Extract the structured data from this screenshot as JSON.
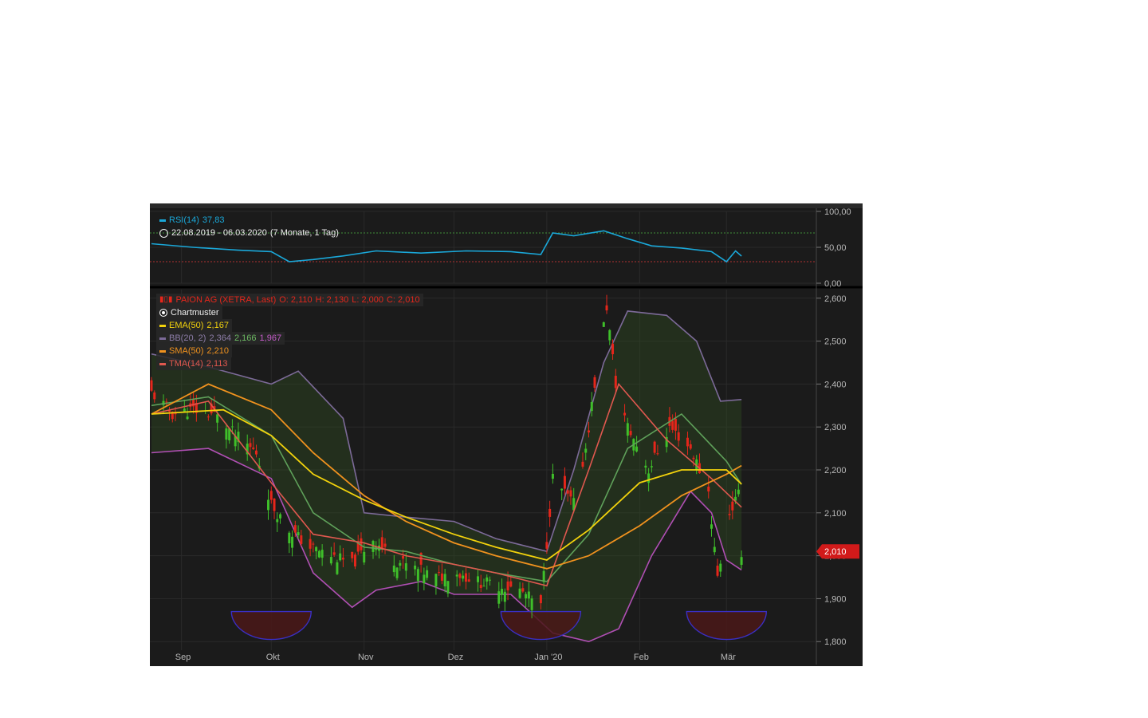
{
  "rsi_panel": {
    "label": "RSI(14)",
    "value": "37,83",
    "period": "22.08.2019 - 06.03.2020",
    "period_note": "(7 Monate, 1 Tag)",
    "ticks": [
      "100,00",
      "50,00",
      "0,00"
    ]
  },
  "price_panel": {
    "title": "PAION AG (XETRA, Last)",
    "ohlc": {
      "o": "O: 2,110",
      "h": "H: 2,130",
      "l": "L: 2,000",
      "c": "C: 2,010"
    },
    "chartmuster": "Chartmuster",
    "ema": {
      "label": "EMA(50)",
      "value": "2,167"
    },
    "bb": {
      "label": "BB(20, 2)",
      "upper": "2,364",
      "mid": "2,166",
      "lower": "1,967"
    },
    "sma": {
      "label": "SMA(50)",
      "value": "2,210"
    },
    "tma": {
      "label": "TMA(14)",
      "value": "2,113"
    },
    "last_price": "2,010",
    "y_ticks": [
      "2,600",
      "2,500",
      "2,400",
      "2,300",
      "2,200",
      "2,100",
      "2,000",
      "1,900",
      "1,800"
    ],
    "x_ticks": [
      "Sep",
      "Okt",
      "Nov",
      "Dez",
      "Jan '20",
      "Feb",
      "Mär"
    ]
  },
  "colors": {
    "background": "#1b1b1b",
    "rsi": "#1aa7d8",
    "ema": "#f2d20c",
    "sma": "#f0921e",
    "tma": "#e0584f",
    "bb_band": "#7c6a98",
    "bb_mid": "#5fa15a",
    "bb_lower": "#b04fb4",
    "up": "#3fbf2a",
    "down": "#e5261b",
    "last_price_tag": "#d11a1a"
  },
  "chart_data": {
    "type": "line",
    "title": "PAION AG (XETRA, Last)",
    "x_range": [
      "2019-08-22",
      "2020-03-06"
    ],
    "x_tick_dates": [
      "2019-09-01",
      "2019-10-01",
      "2019-11-01",
      "2019-12-01",
      "2020-01-01",
      "2020-02-01",
      "2020-03-01"
    ],
    "ylim": [
      1.78,
      2.62
    ],
    "rsi_ylim": [
      0,
      100
    ],
    "rsi_levels": [
      70,
      30
    ],
    "close": [
      [
        "2019-08-22",
        2.38
      ],
      [
        "2019-08-29",
        2.33
      ],
      [
        "2019-09-05",
        2.34
      ],
      [
        "2019-09-12",
        2.33
      ],
      [
        "2019-09-19",
        2.28
      ],
      [
        "2019-09-26",
        2.24
      ],
      [
        "2019-10-01",
        2.12
      ],
      [
        "2019-10-07",
        2.06
      ],
      [
        "2019-10-14",
        2.02
      ],
      [
        "2019-10-21",
        2.0
      ],
      [
        "2019-10-28",
        1.98
      ],
      [
        "2019-11-04",
        2.04
      ],
      [
        "2019-11-11",
        1.99
      ],
      [
        "2019-11-18",
        1.97
      ],
      [
        "2019-11-25",
        1.95
      ],
      [
        "2019-12-02",
        1.96
      ],
      [
        "2019-12-09",
        1.94
      ],
      [
        "2019-12-16",
        1.93
      ],
      [
        "2019-12-23",
        1.92
      ],
      [
        "2019-12-30",
        1.88
      ],
      [
        "2020-01-03",
        2.18
      ],
      [
        "2020-01-10",
        2.12
      ],
      [
        "2020-01-14",
        2.25
      ],
      [
        "2020-01-17",
        2.4
      ],
      [
        "2020-01-21",
        2.58
      ],
      [
        "2020-01-24",
        2.4
      ],
      [
        "2020-01-28",
        2.3
      ],
      [
        "2020-02-04",
        2.2
      ],
      [
        "2020-02-11",
        2.3
      ],
      [
        "2020-02-18",
        2.25
      ],
      [
        "2020-02-24",
        2.15
      ],
      [
        "2020-02-27",
        1.95
      ],
      [
        "2020-03-02",
        2.1
      ],
      [
        "2020-03-05",
        2.14
      ],
      [
        "2020-03-06",
        2.01
      ]
    ],
    "series": [
      {
        "name": "EMA(50)",
        "values": [
          [
            "2019-08-22",
            2.33
          ],
          [
            "2019-09-15",
            2.34
          ],
          [
            "2019-10-01",
            2.28
          ],
          [
            "2019-10-15",
            2.19
          ],
          [
            "2019-11-01",
            2.13
          ],
          [
            "2019-11-15",
            2.09
          ],
          [
            "2019-12-01",
            2.05
          ],
          [
            "2019-12-15",
            2.02
          ],
          [
            "2020-01-01",
            1.99
          ],
          [
            "2020-01-15",
            2.06
          ],
          [
            "2020-02-01",
            2.17
          ],
          [
            "2020-02-15",
            2.2
          ],
          [
            "2020-03-01",
            2.2
          ],
          [
            "2020-03-06",
            2.167
          ]
        ]
      },
      {
        "name": "SMA(50)",
        "values": [
          [
            "2019-08-22",
            2.33
          ],
          [
            "2019-09-10",
            2.4
          ],
          [
            "2019-10-01",
            2.34
          ],
          [
            "2019-10-15",
            2.24
          ],
          [
            "2019-11-01",
            2.14
          ],
          [
            "2019-11-15",
            2.08
          ],
          [
            "2019-12-01",
            2.03
          ],
          [
            "2019-12-15",
            2.0
          ],
          [
            "2020-01-01",
            1.97
          ],
          [
            "2020-01-15",
            2.0
          ],
          [
            "2020-02-01",
            2.07
          ],
          [
            "2020-02-15",
            2.14
          ],
          [
            "2020-03-01",
            2.19
          ],
          [
            "2020-03-06",
            2.21
          ]
        ]
      },
      {
        "name": "TMA(14)",
        "values": [
          [
            "2019-08-22",
            2.33
          ],
          [
            "2019-09-10",
            2.36
          ],
          [
            "2019-10-01",
            2.17
          ],
          [
            "2019-10-15",
            2.05
          ],
          [
            "2019-11-01",
            2.03
          ],
          [
            "2019-11-15",
            2.0
          ],
          [
            "2019-12-01",
            1.98
          ],
          [
            "2019-12-15",
            1.96
          ],
          [
            "2020-01-01",
            1.93
          ],
          [
            "2020-01-15",
            2.2
          ],
          [
            "2020-01-25",
            2.4
          ],
          [
            "2020-02-10",
            2.27
          ],
          [
            "2020-02-25",
            2.18
          ],
          [
            "2020-03-06",
            2.113
          ]
        ]
      },
      {
        "name": "BB upper",
        "values": [
          [
            "2019-08-22",
            2.47
          ],
          [
            "2019-09-10",
            2.44
          ],
          [
            "2019-10-01",
            2.4
          ],
          [
            "2019-10-10",
            2.43
          ],
          [
            "2019-10-25",
            2.32
          ],
          [
            "2019-11-01",
            2.1
          ],
          [
            "2019-11-15",
            2.09
          ],
          [
            "2019-12-01",
            2.08
          ],
          [
            "2019-12-15",
            2.04
          ],
          [
            "2020-01-01",
            2.01
          ],
          [
            "2020-01-10",
            2.2
          ],
          [
            "2020-01-20",
            2.45
          ],
          [
            "2020-01-28",
            2.57
          ],
          [
            "2020-02-10",
            2.56
          ],
          [
            "2020-02-20",
            2.5
          ],
          [
            "2020-02-28",
            2.36
          ],
          [
            "2020-03-06",
            2.364
          ]
        ]
      },
      {
        "name": "BB mid",
        "values": [
          [
            "2019-08-22",
            2.35
          ],
          [
            "2019-09-10",
            2.37
          ],
          [
            "2019-10-01",
            2.28
          ],
          [
            "2019-10-15",
            2.1
          ],
          [
            "2019-11-01",
            2.02
          ],
          [
            "2019-11-15",
            2.01
          ],
          [
            "2019-12-01",
            1.98
          ],
          [
            "2019-12-15",
            1.96
          ],
          [
            "2020-01-01",
            1.94
          ],
          [
            "2020-01-15",
            2.05
          ],
          [
            "2020-01-28",
            2.25
          ],
          [
            "2020-02-15",
            2.33
          ],
          [
            "2020-03-01",
            2.22
          ],
          [
            "2020-03-06",
            2.166
          ]
        ]
      },
      {
        "name": "BB lower",
        "values": [
          [
            "2019-08-22",
            2.24
          ],
          [
            "2019-09-10",
            2.25
          ],
          [
            "2019-10-01",
            2.18
          ],
          [
            "2019-10-15",
            1.96
          ],
          [
            "2019-10-28",
            1.88
          ],
          [
            "2019-11-05",
            1.92
          ],
          [
            "2019-11-20",
            1.94
          ],
          [
            "2019-12-01",
            1.91
          ],
          [
            "2019-12-20",
            1.91
          ],
          [
            "2020-01-03",
            1.82
          ],
          [
            "2020-01-15",
            1.8
          ],
          [
            "2020-01-25",
            1.83
          ],
          [
            "2020-02-05",
            2.0
          ],
          [
            "2020-02-18",
            2.15
          ],
          [
            "2020-02-25",
            2.1
          ],
          [
            "2020-03-01",
            1.99
          ],
          [
            "2020-03-06",
            1.967
          ]
        ]
      },
      {
        "name": "RSI(14)",
        "values": [
          [
            "2019-08-22",
            55
          ],
          [
            "2019-09-05",
            50
          ],
          [
            "2019-09-20",
            46
          ],
          [
            "2019-10-01",
            44
          ],
          [
            "2019-10-07",
            30
          ],
          [
            "2019-10-15",
            33
          ],
          [
            "2019-10-25",
            38
          ],
          [
            "2019-11-05",
            45
          ],
          [
            "2019-11-20",
            42
          ],
          [
            "2019-12-05",
            45
          ],
          [
            "2019-12-20",
            44
          ],
          [
            "2019-12-30",
            40
          ],
          [
            "2020-01-03",
            70
          ],
          [
            "2020-01-10",
            66
          ],
          [
            "2020-01-20",
            73
          ],
          [
            "2020-01-28",
            62
          ],
          [
            "2020-02-05",
            52
          ],
          [
            "2020-02-15",
            49
          ],
          [
            "2020-02-25",
            44
          ],
          [
            "2020-03-01",
            30
          ],
          [
            "2020-03-04",
            45
          ],
          [
            "2020-03-06",
            37.83
          ]
        ]
      }
    ]
  }
}
